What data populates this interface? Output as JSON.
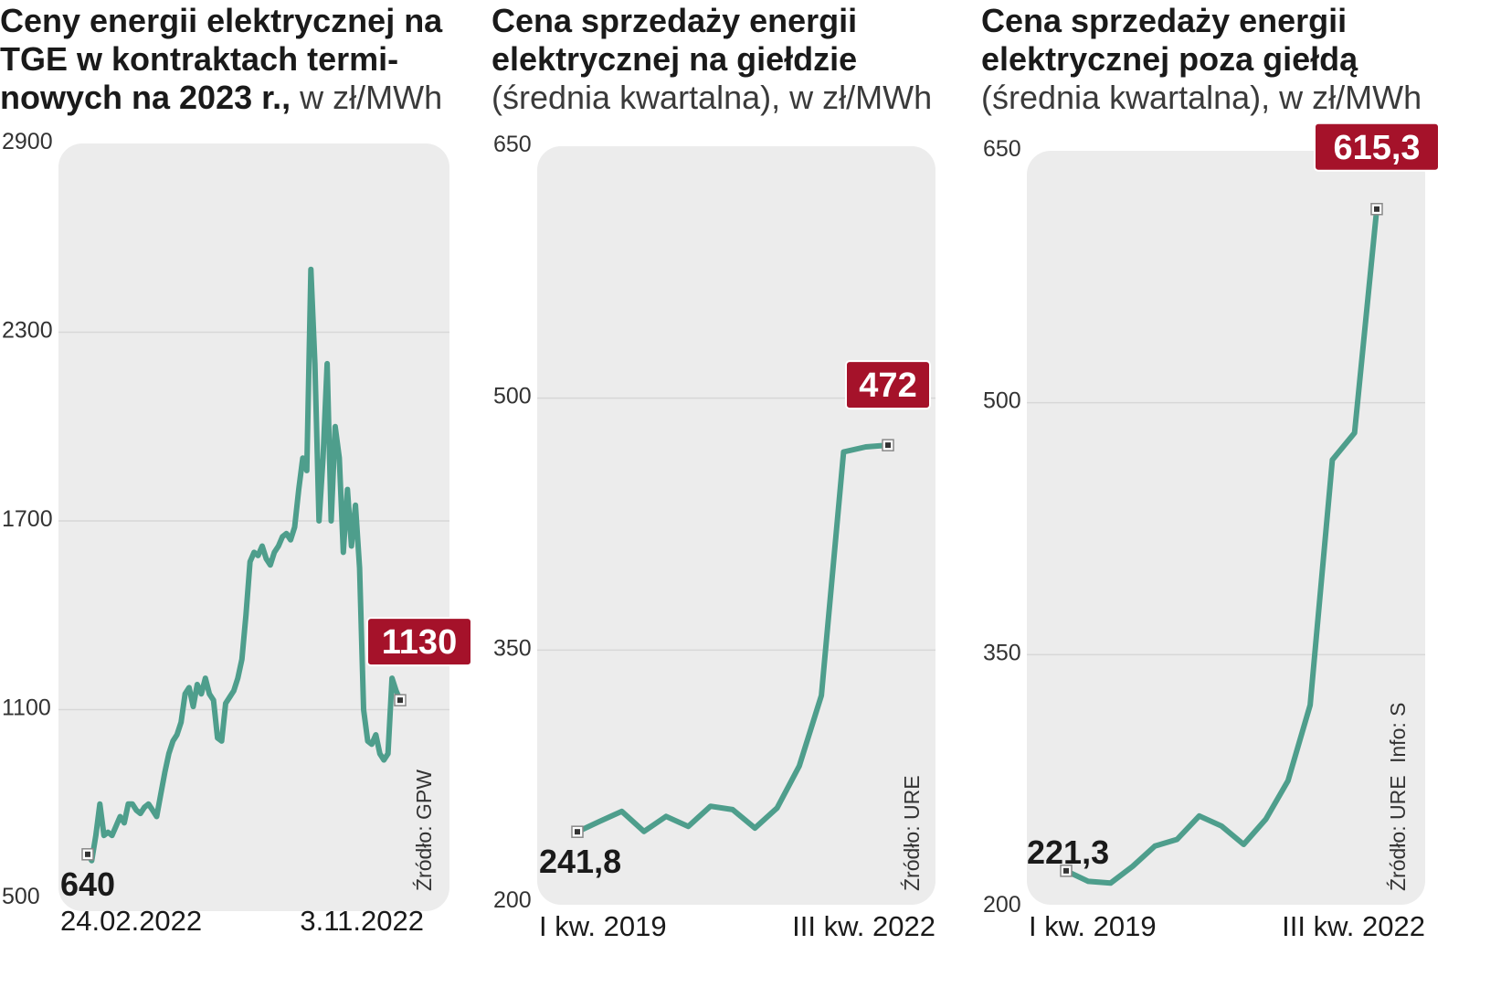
{
  "colors": {
    "line": "#4e9e8c",
    "badge": "#a5122a",
    "plot_bg": "#ececec",
    "grid": "#d7d7d7"
  },
  "chart_data": [
    {
      "type": "line",
      "title_bold": "Ceny energii elektrycznej na TGE w kontraktach termi­nowych na 2023 r.,",
      "title_normal": "w zł/MWh",
      "yticks": [
        "2900",
        "2300",
        "1700",
        "1100",
        "500"
      ],
      "ylim": [
        500,
        2900
      ],
      "x_labels": [
        "24.02.2022",
        "3.11.2022"
      ],
      "start_label": "640",
      "end_label": "1130",
      "source": "Źródło: GPW",
      "series": [
        {
          "values": [
            640,
            620,
            700,
            800,
            700,
            710,
            700,
            730,
            760,
            740,
            800,
            800,
            780,
            770,
            790,
            800,
            780,
            760,
            830,
            900,
            960,
            1000,
            1020,
            1060,
            1150,
            1170,
            1110,
            1180,
            1150,
            1200,
            1150,
            1130,
            1010,
            1000,
            1120,
            1140,
            1160,
            1200,
            1260,
            1400,
            1570,
            1600,
            1590,
            1620,
            1580,
            1560,
            1600,
            1620,
            1650,
            1660,
            1640,
            1680,
            1800,
            1900,
            1860,
            2500,
            2200,
            1700,
            1900,
            2200,
            1700,
            2000,
            1900,
            1600,
            1800,
            1620,
            1750,
            1550,
            1100,
            1000,
            990,
            1020,
            960,
            940,
            960,
            1200,
            1160,
            1130
          ]
        }
      ]
    },
    {
      "type": "line",
      "title_bold": "Cena sprzedaży energii elektrycznej na giełdzie",
      "title_normal": "(średnia kwartalna), w zł/MWh",
      "yticks": [
        "650",
        "500",
        "350",
        "200"
      ],
      "ylim": [
        200,
        650
      ],
      "x_labels": [
        "I kw. 2019",
        "III kw. 2022"
      ],
      "start_label": "241,8",
      "end_label": "472",
      "source": "Źródło: URE",
      "series": [
        {
          "x": [
            "I kw. 2019",
            "II kw. 2019",
            "III kw. 2019",
            "IV kw. 2019",
            "I kw. 2020",
            "II kw. 2020",
            "III kw. 2020",
            "IV kw. 2020",
            "I kw. 2021",
            "II kw. 2021",
            "III kw. 2021",
            "IV kw. 2021",
            "I kw. 2022",
            "II kw. 2022",
            "III kw. 2022"
          ],
          "values": [
            241.8,
            248,
            254,
            242,
            251,
            245,
            257,
            255,
            244,
            256,
            281,
            323,
            468,
            471,
            472
          ]
        }
      ]
    },
    {
      "type": "line",
      "title_bold": "Cena sprzedaży energii elektrycznej poza giełdą",
      "title_normal": "(średnia kwartalna), w zł/MWh",
      "yticks": [
        "650",
        "500",
        "350",
        "200"
      ],
      "ylim": [
        200,
        650
      ],
      "x_labels": [
        "I kw. 2019",
        "III kw. 2022"
      ],
      "start_label": "221,3",
      "end_label": "615,3",
      "source": "Źródło: URE",
      "info": "Info: S",
      "series": [
        {
          "x": [
            "I kw. 2019",
            "II kw. 2019",
            "III kw. 2019",
            "IV kw. 2019",
            "I kw. 2020",
            "II kw. 2020",
            "III kw. 2020",
            "IV kw. 2020",
            "I kw. 2021",
            "II kw. 2021",
            "III kw. 2021",
            "IV kw. 2021",
            "I kw. 2022",
            "II kw. 2022",
            "III kw. 2022"
          ],
          "values": [
            221.3,
            215,
            214,
            224,
            236,
            240,
            254,
            248,
            237,
            252,
            275,
            320,
            466,
            482,
            615.3
          ]
        }
      ]
    }
  ]
}
